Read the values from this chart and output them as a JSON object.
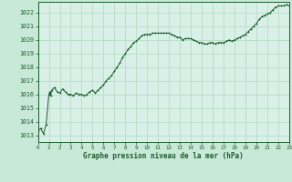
{
  "title": "Graphe pression niveau de la mer (hPa)",
  "background_color": "#c8e8d8",
  "plot_background_color": "#d8f0e8",
  "grid_color": "#b0d8c0",
  "line_color": "#1a5c2a",
  "marker_color": "#1a5c2a",
  "border_color": "#1a5c2a",
  "xlim": [
    0,
    23
  ],
  "ylim": [
    1012.5,
    1022.8
  ],
  "yticks": [
    1013,
    1014,
    1015,
    1016,
    1017,
    1018,
    1019,
    1020,
    1021,
    1022
  ],
  "xticks": [
    0,
    1,
    2,
    3,
    4,
    5,
    6,
    7,
    8,
    9,
    10,
    11,
    12,
    13,
    14,
    15,
    16,
    17,
    18,
    19,
    20,
    21,
    22,
    23
  ],
  "data_x": [
    0.0,
    0.25,
    0.5,
    0.75,
    1.0,
    1.08,
    1.17,
    1.25,
    1.5,
    1.75,
    2.0,
    2.25,
    2.5,
    2.75,
    3.0,
    3.25,
    3.5,
    3.75,
    4.0,
    4.25,
    4.5,
    4.75,
    5.0,
    5.25,
    5.5,
    5.75,
    6.0,
    6.25,
    6.5,
    6.75,
    7.0,
    7.25,
    7.5,
    7.75,
    8.0,
    8.25,
    8.5,
    8.75,
    9.0,
    9.25,
    9.5,
    9.75,
    10.0,
    10.25,
    10.5,
    10.75,
    11.0,
    11.25,
    11.5,
    11.75,
    12.0,
    12.25,
    12.5,
    12.75,
    13.0,
    13.25,
    13.5,
    13.75,
    14.0,
    14.25,
    14.5,
    14.75,
    15.0,
    15.25,
    15.5,
    15.75,
    16.0,
    16.25,
    16.5,
    16.75,
    17.0,
    17.25,
    17.5,
    17.75,
    18.0,
    18.25,
    18.5,
    18.75,
    19.0,
    19.25,
    19.5,
    19.75,
    20.0,
    20.25,
    20.5,
    20.75,
    21.0,
    21.25,
    21.5,
    21.75,
    22.0,
    22.25,
    22.5,
    22.75,
    23.0
  ],
  "data_y": [
    1013.3,
    1013.5,
    1013.1,
    1013.8,
    1016.0,
    1016.2,
    1015.9,
    1016.3,
    1016.5,
    1016.2,
    1016.1,
    1016.4,
    1016.2,
    1016.0,
    1016.0,
    1015.9,
    1016.1,
    1016.0,
    1016.0,
    1015.9,
    1016.0,
    1016.2,
    1016.3,
    1016.1,
    1016.3,
    1016.5,
    1016.7,
    1017.0,
    1017.2,
    1017.4,
    1017.7,
    1018.0,
    1018.3,
    1018.7,
    1019.0,
    1019.3,
    1019.5,
    1019.8,
    1019.9,
    1020.1,
    1020.3,
    1020.4,
    1020.4,
    1020.4,
    1020.5,
    1020.5,
    1020.5,
    1020.5,
    1020.5,
    1020.5,
    1020.5,
    1020.4,
    1020.3,
    1020.2,
    1020.2,
    1020.0,
    1020.1,
    1020.1,
    1020.1,
    1020.0,
    1019.9,
    1019.8,
    1019.8,
    1019.7,
    1019.7,
    1019.8,
    1019.8,
    1019.7,
    1019.8,
    1019.8,
    1019.8,
    1019.9,
    1020.0,
    1019.9,
    1020.0,
    1020.1,
    1020.2,
    1020.3,
    1020.4,
    1020.6,
    1020.8,
    1021.0,
    1021.2,
    1021.5,
    1021.7,
    1021.8,
    1021.9,
    1022.0,
    1022.2,
    1022.4,
    1022.5,
    1022.5,
    1022.5,
    1022.6,
    1022.5
  ]
}
